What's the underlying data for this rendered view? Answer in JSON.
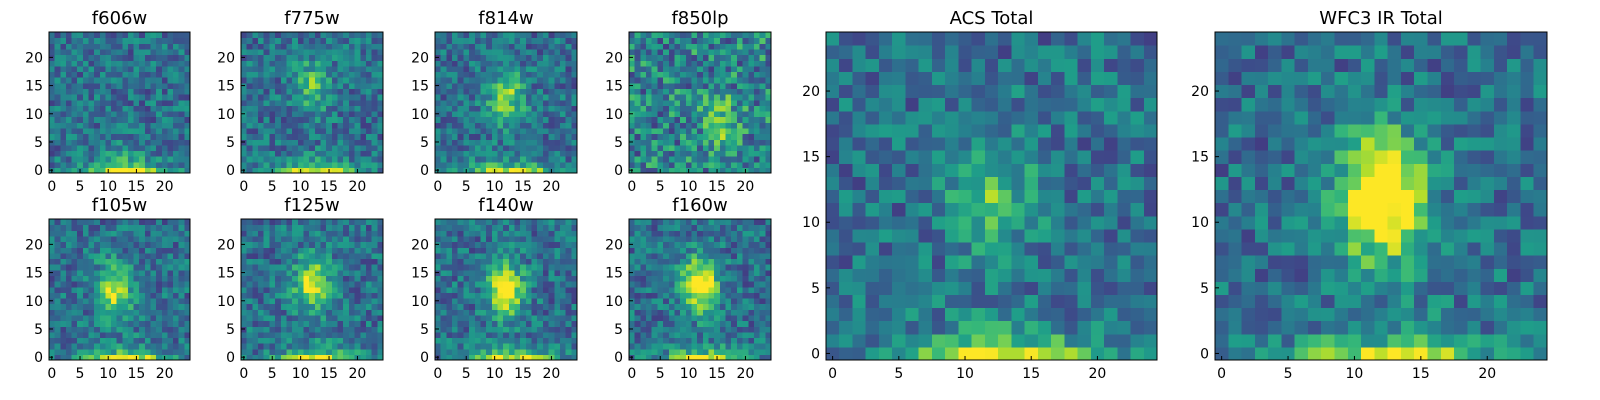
{
  "chart_data": [
    {
      "type": "heatmap",
      "title": "f606w",
      "x_ticks": [
        0,
        5,
        10,
        15,
        20
      ],
      "y_ticks": [
        0,
        5,
        10,
        15,
        20
      ],
      "xlim": [
        0,
        25
      ],
      "ylim": [
        0,
        25
      ],
      "grid_size": 25,
      "colormap": "viridis",
      "feature": {
        "cx": 12,
        "cy": 1,
        "bright_bottom": true,
        "blob": 0.15
      }
    },
    {
      "type": "heatmap",
      "title": "f775w",
      "x_ticks": [
        0,
        5,
        10,
        15,
        20
      ],
      "y_ticks": [
        0,
        5,
        10,
        15,
        20
      ],
      "xlim": [
        0,
        25
      ],
      "ylim": [
        0,
        25
      ],
      "grid_size": 25,
      "colormap": "viridis",
      "feature": {
        "cx": 12,
        "cy": 15,
        "bright_bottom": true,
        "blob": 0.35
      }
    },
    {
      "type": "heatmap",
      "title": "f814w",
      "x_ticks": [
        0,
        5,
        10,
        15,
        20
      ],
      "y_ticks": [
        0,
        5,
        10,
        15,
        20
      ],
      "xlim": [
        0,
        25
      ],
      "ylim": [
        0,
        25
      ],
      "grid_size": 25,
      "colormap": "viridis",
      "feature": {
        "cx": 12,
        "cy": 13,
        "bright_bottom": true,
        "blob": 0.45
      }
    },
    {
      "type": "heatmap",
      "title": "f850lp",
      "x_ticks": [
        0,
        5,
        10,
        15,
        20
      ],
      "y_ticks": [
        0,
        5,
        10,
        15,
        20
      ],
      "xlim": [
        0,
        25
      ],
      "ylim": [
        0,
        25
      ],
      "grid_size": 25,
      "colormap": "viridis",
      "feature": {
        "cx": 16,
        "cy": 8,
        "bright_bottom": false,
        "blob": 0.3
      }
    },
    {
      "type": "heatmap",
      "title": "f105w",
      "x_ticks": [
        0,
        5,
        10,
        15,
        20
      ],
      "y_ticks": [
        0,
        5,
        10,
        15,
        20
      ],
      "xlim": [
        0,
        25
      ],
      "ylim": [
        0,
        25
      ],
      "grid_size": 25,
      "colormap": "viridis",
      "feature": {
        "cx": 11,
        "cy": 12,
        "bright_bottom": true,
        "blob": 0.55
      }
    },
    {
      "type": "heatmap",
      "title": "f125w",
      "x_ticks": [
        0,
        5,
        10,
        15,
        20
      ],
      "y_ticks": [
        0,
        5,
        10,
        15,
        20
      ],
      "xlim": [
        0,
        25
      ],
      "ylim": [
        0,
        25
      ],
      "grid_size": 25,
      "colormap": "viridis",
      "feature": {
        "cx": 12,
        "cy": 13,
        "bright_bottom": true,
        "blob": 0.55
      }
    },
    {
      "type": "heatmap",
      "title": "f140w",
      "x_ticks": [
        0,
        5,
        10,
        15,
        20
      ],
      "y_ticks": [
        0,
        5,
        10,
        15,
        20
      ],
      "xlim": [
        0,
        25
      ],
      "ylim": [
        0,
        25
      ],
      "grid_size": 25,
      "colormap": "viridis",
      "feature": {
        "cx": 12,
        "cy": 12,
        "bright_bottom": true,
        "blob": 0.65
      }
    },
    {
      "type": "heatmap",
      "title": "f160w",
      "x_ticks": [
        0,
        5,
        10,
        15,
        20
      ],
      "y_ticks": [
        0,
        5,
        10,
        15,
        20
      ],
      "xlim": [
        0,
        25
      ],
      "ylim": [
        0,
        25
      ],
      "grid_size": 25,
      "colormap": "viridis",
      "feature": {
        "cx": 12,
        "cy": 13,
        "bright_bottom": true,
        "blob": 0.75
      }
    },
    {
      "type": "heatmap",
      "title": "ACS Total",
      "x_ticks": [
        0,
        5,
        10,
        15,
        20
      ],
      "y_ticks": [
        0,
        5,
        10,
        15,
        20
      ],
      "xlim": [
        0,
        25
      ],
      "ylim": [
        0,
        25
      ],
      "grid_size": 25,
      "colormap": "viridis",
      "feature": {
        "cx": 12,
        "cy": 12,
        "bright_bottom": true,
        "blob": 0.35
      }
    },
    {
      "type": "heatmap",
      "title": "WFC3 IR Total",
      "x_ticks": [
        0,
        5,
        10,
        15,
        20
      ],
      "y_ticks": [
        0,
        5,
        10,
        15,
        20
      ],
      "xlim": [
        0,
        25
      ],
      "ylim": [
        0,
        25
      ],
      "grid_size": 25,
      "colormap": "viridis",
      "feature": {
        "cx": 12,
        "cy": 12,
        "bright_bottom": true,
        "blob": 0.9
      }
    }
  ],
  "colors": {
    "viridis": [
      "#440154",
      "#482878",
      "#3e4989",
      "#31688e",
      "#26828e",
      "#1f9e89",
      "#35b779",
      "#6ece58",
      "#b5de2b",
      "#fde725"
    ],
    "axis": "#000000",
    "background": "#ffffff"
  }
}
